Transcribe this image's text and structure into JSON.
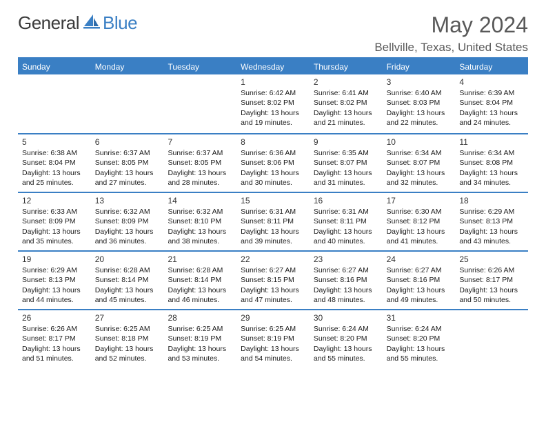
{
  "brand": {
    "part1": "General",
    "part2": "Blue",
    "accent": "#3a7fc4"
  },
  "title": "May 2024",
  "location": "Bellville, Texas, United States",
  "weekdays": [
    "Sunday",
    "Monday",
    "Tuesday",
    "Wednesday",
    "Thursday",
    "Friday",
    "Saturday"
  ],
  "header_bg": "#3a7fc4",
  "header_fg": "#ffffff",
  "rule_color": "#3a7fc4",
  "weeks": [
    [
      {
        "blank": true
      },
      {
        "blank": true
      },
      {
        "blank": true
      },
      {
        "n": "1",
        "sr": "6:42 AM",
        "ss": "8:02 PM",
        "dl": "13 hours and 19 minutes."
      },
      {
        "n": "2",
        "sr": "6:41 AM",
        "ss": "8:02 PM",
        "dl": "13 hours and 21 minutes."
      },
      {
        "n": "3",
        "sr": "6:40 AM",
        "ss": "8:03 PM",
        "dl": "13 hours and 22 minutes."
      },
      {
        "n": "4",
        "sr": "6:39 AM",
        "ss": "8:04 PM",
        "dl": "13 hours and 24 minutes."
      }
    ],
    [
      {
        "n": "5",
        "sr": "6:38 AM",
        "ss": "8:04 PM",
        "dl": "13 hours and 25 minutes."
      },
      {
        "n": "6",
        "sr": "6:37 AM",
        "ss": "8:05 PM",
        "dl": "13 hours and 27 minutes."
      },
      {
        "n": "7",
        "sr": "6:37 AM",
        "ss": "8:05 PM",
        "dl": "13 hours and 28 minutes."
      },
      {
        "n": "8",
        "sr": "6:36 AM",
        "ss": "8:06 PM",
        "dl": "13 hours and 30 minutes."
      },
      {
        "n": "9",
        "sr": "6:35 AM",
        "ss": "8:07 PM",
        "dl": "13 hours and 31 minutes."
      },
      {
        "n": "10",
        "sr": "6:34 AM",
        "ss": "8:07 PM",
        "dl": "13 hours and 32 minutes."
      },
      {
        "n": "11",
        "sr": "6:34 AM",
        "ss": "8:08 PM",
        "dl": "13 hours and 34 minutes."
      }
    ],
    [
      {
        "n": "12",
        "sr": "6:33 AM",
        "ss": "8:09 PM",
        "dl": "13 hours and 35 minutes."
      },
      {
        "n": "13",
        "sr": "6:32 AM",
        "ss": "8:09 PM",
        "dl": "13 hours and 36 minutes."
      },
      {
        "n": "14",
        "sr": "6:32 AM",
        "ss": "8:10 PM",
        "dl": "13 hours and 38 minutes."
      },
      {
        "n": "15",
        "sr": "6:31 AM",
        "ss": "8:11 PM",
        "dl": "13 hours and 39 minutes."
      },
      {
        "n": "16",
        "sr": "6:31 AM",
        "ss": "8:11 PM",
        "dl": "13 hours and 40 minutes."
      },
      {
        "n": "17",
        "sr": "6:30 AM",
        "ss": "8:12 PM",
        "dl": "13 hours and 41 minutes."
      },
      {
        "n": "18",
        "sr": "6:29 AM",
        "ss": "8:13 PM",
        "dl": "13 hours and 43 minutes."
      }
    ],
    [
      {
        "n": "19",
        "sr": "6:29 AM",
        "ss": "8:13 PM",
        "dl": "13 hours and 44 minutes."
      },
      {
        "n": "20",
        "sr": "6:28 AM",
        "ss": "8:14 PM",
        "dl": "13 hours and 45 minutes."
      },
      {
        "n": "21",
        "sr": "6:28 AM",
        "ss": "8:14 PM",
        "dl": "13 hours and 46 minutes."
      },
      {
        "n": "22",
        "sr": "6:27 AM",
        "ss": "8:15 PM",
        "dl": "13 hours and 47 minutes."
      },
      {
        "n": "23",
        "sr": "6:27 AM",
        "ss": "8:16 PM",
        "dl": "13 hours and 48 minutes."
      },
      {
        "n": "24",
        "sr": "6:27 AM",
        "ss": "8:16 PM",
        "dl": "13 hours and 49 minutes."
      },
      {
        "n": "25",
        "sr": "6:26 AM",
        "ss": "8:17 PM",
        "dl": "13 hours and 50 minutes."
      }
    ],
    [
      {
        "n": "26",
        "sr": "6:26 AM",
        "ss": "8:17 PM",
        "dl": "13 hours and 51 minutes."
      },
      {
        "n": "27",
        "sr": "6:25 AM",
        "ss": "8:18 PM",
        "dl": "13 hours and 52 minutes."
      },
      {
        "n": "28",
        "sr": "6:25 AM",
        "ss": "8:19 PM",
        "dl": "13 hours and 53 minutes."
      },
      {
        "n": "29",
        "sr": "6:25 AM",
        "ss": "8:19 PM",
        "dl": "13 hours and 54 minutes."
      },
      {
        "n": "30",
        "sr": "6:24 AM",
        "ss": "8:20 PM",
        "dl": "13 hours and 55 minutes."
      },
      {
        "n": "31",
        "sr": "6:24 AM",
        "ss": "8:20 PM",
        "dl": "13 hours and 55 minutes."
      },
      {
        "blank": true
      }
    ]
  ],
  "labels": {
    "sunrise": "Sunrise:",
    "sunset": "Sunset:",
    "daylight": "Daylight:"
  }
}
